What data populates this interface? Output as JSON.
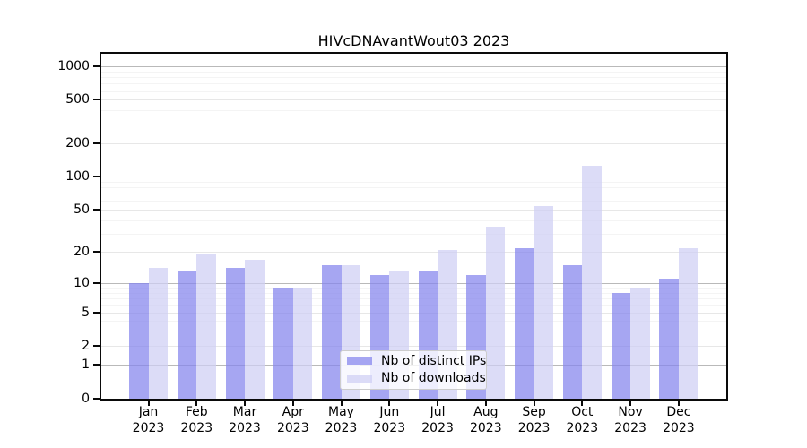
{
  "title": "HIVcDNAvantWout03 2023",
  "legend": {
    "items": [
      {
        "label": "Nb of distinct IPs",
        "color": "#8484ed",
        "alpha": 0.72
      },
      {
        "label": "Nb of downloads",
        "color": "#cecef4",
        "alpha": 0.72
      }
    ]
  },
  "chart_data": {
    "type": "bar",
    "title": "HIVcDNAvantWout03 2023",
    "categories": [
      "Jan 2023",
      "Feb 2023",
      "Mar 2023",
      "Apr 2023",
      "May 2023",
      "Jun 2023",
      "Jul 2023",
      "Aug 2023",
      "Sep 2023",
      "Oct 2023",
      "Nov 2023",
      "Dec 2023"
    ],
    "series": [
      {
        "name": "Nb of distinct IPs",
        "color": "#8484ed",
        "alpha": 0.72,
        "values": [
          10,
          13,
          14,
          9,
          15,
          12,
          13,
          12,
          22,
          15,
          8,
          11
        ]
      },
      {
        "name": "Nb of downloads",
        "color": "#cecef4",
        "alpha": 0.72,
        "values": [
          14,
          19,
          17,
          9,
          15,
          13,
          21,
          35,
          54,
          125,
          9,
          22
        ]
      }
    ],
    "xlabel": "",
    "ylabel": "",
    "yscale": "log(value+1)",
    "y_ticks": [
      0,
      1,
      2,
      5,
      10,
      20,
      50,
      100,
      200,
      500,
      1000
    ],
    "ylim": [
      0,
      1300
    ],
    "grid": true,
    "legend_position": "inside lower-center"
  }
}
